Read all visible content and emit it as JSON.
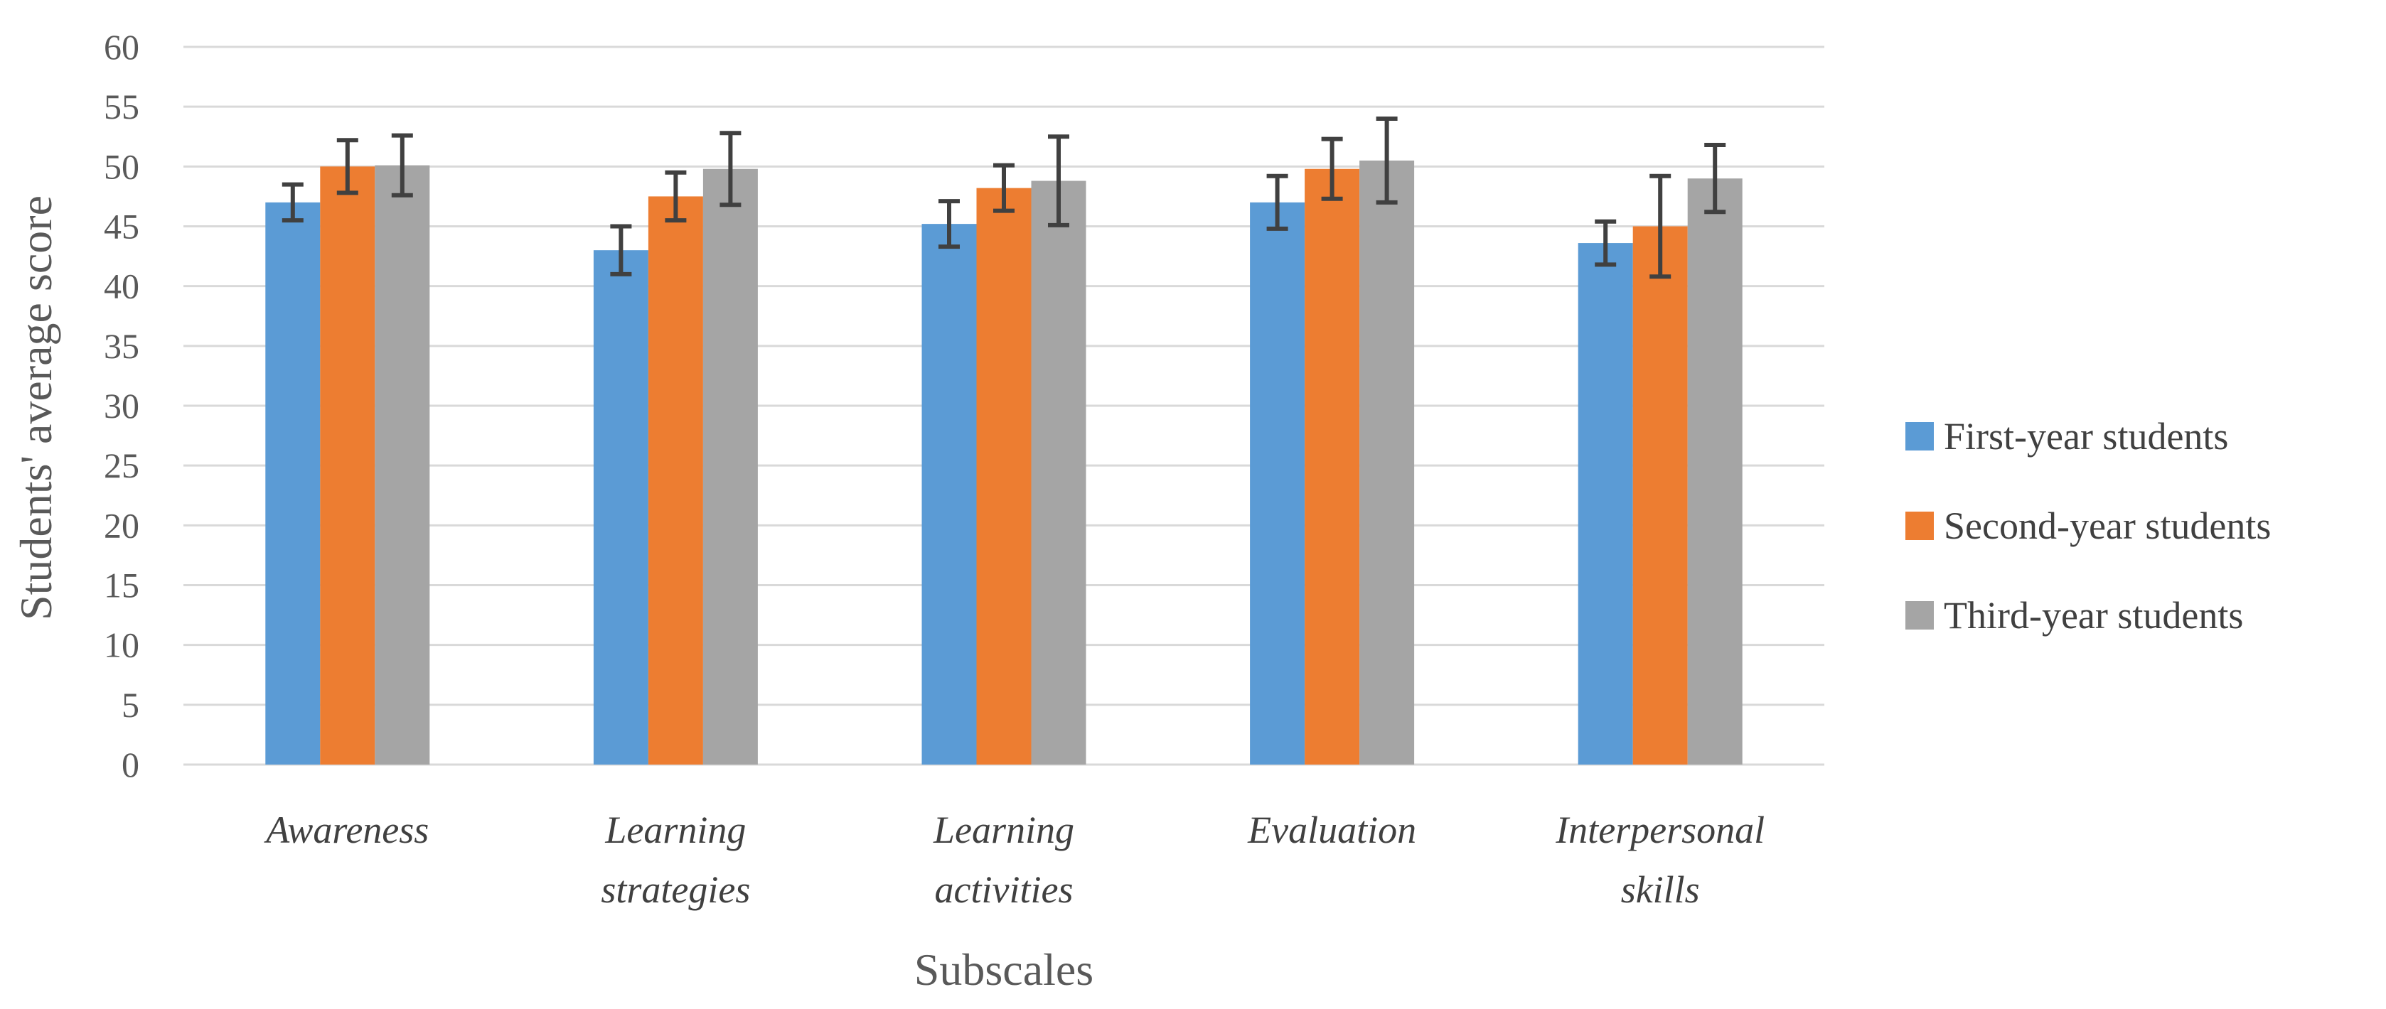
{
  "chart_data": {
    "type": "bar",
    "title": "",
    "xlabel": "Subscales",
    "ylabel": "Students' average score",
    "ylim": [
      0,
      60
    ],
    "yticks": [
      0,
      5,
      10,
      15,
      20,
      25,
      30,
      35,
      40,
      45,
      50,
      55,
      60
    ],
    "grid": true,
    "legend_position": "right",
    "categories": [
      [
        "Awareness"
      ],
      [
        "Learning",
        "strategies"
      ],
      [
        "Learning",
        "activities"
      ],
      [
        "Evaluation"
      ],
      [
        "Interpersonal",
        "skills"
      ]
    ],
    "series": [
      {
        "name": "First-year students",
        "color": "#5b9bd5",
        "values": [
          47.0,
          43.0,
          45.2,
          47.0,
          43.6
        ],
        "error": [
          1.5,
          2.0,
          1.9,
          2.2,
          1.8
        ]
      },
      {
        "name": "Second-year students",
        "color": "#ed7d31",
        "values": [
          50.0,
          47.5,
          48.2,
          49.8,
          45.0
        ],
        "error": [
          2.2,
          2.0,
          1.9,
          2.5,
          4.2
        ]
      },
      {
        "name": "Third-year students",
        "color": "#a5a5a5",
        "values": [
          50.1,
          49.8,
          48.8,
          50.5,
          49.0
        ],
        "error": [
          2.5,
          3.0,
          3.7,
          3.5,
          2.8
        ]
      }
    ]
  }
}
